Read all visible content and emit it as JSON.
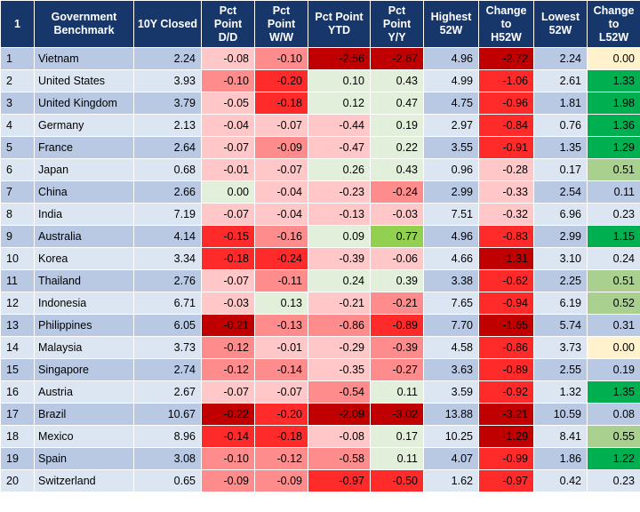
{
  "headers": [
    "1",
    "Government\nBenchmark",
    "10Y Closed",
    "Pct\nPoint\nD/D",
    "Pct\nPoint\nW/W",
    "Pct Point\nYTD",
    "Pct\nPoint\nY/Y",
    "Highest\n52W",
    "Change\nto\nH52W",
    "Lowest\n52W",
    "Change\nto\nL52W"
  ],
  "colors": {
    "header_bg": "#17376b",
    "row_odd": "#b9c9e4",
    "row_even": "#dce6f2",
    "neg_light": "#ffc7c7",
    "neg_mid": "#ff8c8c",
    "neg_strong": "#ff2b2b",
    "neg_dark": "#c00000",
    "pos_light": "#e2efda",
    "pos_mid": "#a9d08e",
    "pos_strong": "#92d050",
    "pos_dark": "#00b050",
    "zero_cream": "#fff2cc"
  },
  "rows": [
    {
      "idx": "1",
      "name": "Vietnam",
      "closed": "2.24",
      "dd": "-0.08",
      "ww": "-0.10",
      "ytd": "-2.56",
      "yy": "-2.67",
      "h52": "4.96",
      "ch52": "-2.72",
      "l52": "2.24",
      "cl52": "0.00"
    },
    {
      "idx": "2",
      "name": "United States",
      "closed": "3.93",
      "dd": "-0.10",
      "ww": "-0.20",
      "ytd": "0.10",
      "yy": "0.43",
      "h52": "4.99",
      "ch52": "-1.06",
      "l52": "2.61",
      "cl52": "1.33"
    },
    {
      "idx": "3",
      "name": "United Kingdom",
      "closed": "3.79",
      "dd": "-0.05",
      "ww": "-0.18",
      "ytd": "0.12",
      "yy": "0.47",
      "h52": "4.75",
      "ch52": "-0.96",
      "l52": "1.81",
      "cl52": "1.98"
    },
    {
      "idx": "4",
      "name": "Germany",
      "closed": "2.13",
      "dd": "-0.04",
      "ww": "-0.07",
      "ytd": "-0.44",
      "yy": "0.19",
      "h52": "2.97",
      "ch52": "-0.84",
      "l52": "0.76",
      "cl52": "1.36"
    },
    {
      "idx": "5",
      "name": "France",
      "closed": "2.64",
      "dd": "-0.07",
      "ww": "-0.09",
      "ytd": "-0.47",
      "yy": "0.22",
      "h52": "3.55",
      "ch52": "-0.91",
      "l52": "1.35",
      "cl52": "1.29"
    },
    {
      "idx": "6",
      "name": "Japan",
      "closed": "0.68",
      "dd": "-0.01",
      "ww": "-0.07",
      "ytd": "0.26",
      "yy": "0.43",
      "h52": "0.96",
      "ch52": "-0.28",
      "l52": "0.17",
      "cl52": "0.51"
    },
    {
      "idx": "7",
      "name": "China",
      "closed": "2.66",
      "dd": "0.00",
      "ww": "-0.04",
      "ytd": "-0.23",
      "yy": "-0.24",
      "h52": "2.99",
      "ch52": "-0.33",
      "l52": "2.54",
      "cl52": "0.11"
    },
    {
      "idx": "8",
      "name": "India",
      "closed": "7.19",
      "dd": "-0.07",
      "ww": "-0.04",
      "ytd": "-0.13",
      "yy": "-0.03",
      "h52": "7.51",
      "ch52": "-0.32",
      "l52": "6.96",
      "cl52": "0.23"
    },
    {
      "idx": "9",
      "name": "Australia",
      "closed": "4.14",
      "dd": "-0.15",
      "ww": "-0.16",
      "ytd": "0.09",
      "yy": "0.77",
      "h52": "4.96",
      "ch52": "-0.83",
      "l52": "2.99",
      "cl52": "1.15"
    },
    {
      "idx": "10",
      "name": "Korea",
      "closed": "3.34",
      "dd": "-0.18",
      "ww": "-0.24",
      "ytd": "-0.39",
      "yy": "-0.06",
      "h52": "4.66",
      "ch52": "-1.31",
      "l52": "3.10",
      "cl52": "0.24"
    },
    {
      "idx": "11",
      "name": "Thailand",
      "closed": "2.76",
      "dd": "-0.07",
      "ww": "-0.11",
      "ytd": "0.24",
      "yy": "0.39",
      "h52": "3.38",
      "ch52": "-0.62",
      "l52": "2.25",
      "cl52": "0.51"
    },
    {
      "idx": "12",
      "name": "Indonesia",
      "closed": "6.71",
      "dd": "-0.03",
      "ww": "0.13",
      "ytd": "-0.21",
      "yy": "-0.21",
      "h52": "7.65",
      "ch52": "-0.94",
      "l52": "6.19",
      "cl52": "0.52"
    },
    {
      "idx": "13",
      "name": "Philippines",
      "closed": "6.05",
      "dd": "-0.21",
      "ww": "-0.13",
      "ytd": "-0.86",
      "yy": "-0.89",
      "h52": "7.70",
      "ch52": "-1.65",
      "l52": "5.74",
      "cl52": "0.31"
    },
    {
      "idx": "14",
      "name": "Malaysia",
      "closed": "3.73",
      "dd": "-0.12",
      "ww": "-0.01",
      "ytd": "-0.29",
      "yy": "-0.39",
      "h52": "4.58",
      "ch52": "-0.86",
      "l52": "3.73",
      "cl52": "0.00"
    },
    {
      "idx": "15",
      "name": "Singapore",
      "closed": "2.74",
      "dd": "-0.12",
      "ww": "-0.14",
      "ytd": "-0.35",
      "yy": "-0.27",
      "h52": "3.63",
      "ch52": "-0.89",
      "l52": "2.55",
      "cl52": "0.19"
    },
    {
      "idx": "16",
      "name": "Austria",
      "closed": "2.67",
      "dd": "-0.07",
      "ww": "-0.07",
      "ytd": "-0.54",
      "yy": "0.11",
      "h52": "3.59",
      "ch52": "-0.92",
      "l52": "1.32",
      "cl52": "1.35"
    },
    {
      "idx": "17",
      "name": "Brazil",
      "closed": "10.67",
      "dd": "-0.22",
      "ww": "-0.20",
      "ytd": "-2.09",
      "yy": "-3.02",
      "h52": "13.88",
      "ch52": "-3.21",
      "l52": "10.59",
      "cl52": "0.08"
    },
    {
      "idx": "18",
      "name": "Mexico",
      "closed": "8.96",
      "dd": "-0.14",
      "ww": "-0.18",
      "ytd": "-0.08",
      "yy": "0.17",
      "h52": "10.25",
      "ch52": "-1.29",
      "l52": "8.41",
      "cl52": "0.55"
    },
    {
      "idx": "19",
      "name": "Spain",
      "closed": "3.08",
      "dd": "-0.10",
      "ww": "-0.12",
      "ytd": "-0.58",
      "yy": "0.11",
      "h52": "4.07",
      "ch52": "-0.99",
      "l52": "1.86",
      "cl52": "1.22"
    },
    {
      "idx": "20",
      "name": "Switzerland",
      "closed": "0.65",
      "dd": "-0.09",
      "ww": "-0.09",
      "ytd": "-0.97",
      "yy": "-0.50",
      "h52": "1.62",
      "ch52": "-0.97",
      "l52": "0.42",
      "cl52": "0.23"
    }
  ]
}
